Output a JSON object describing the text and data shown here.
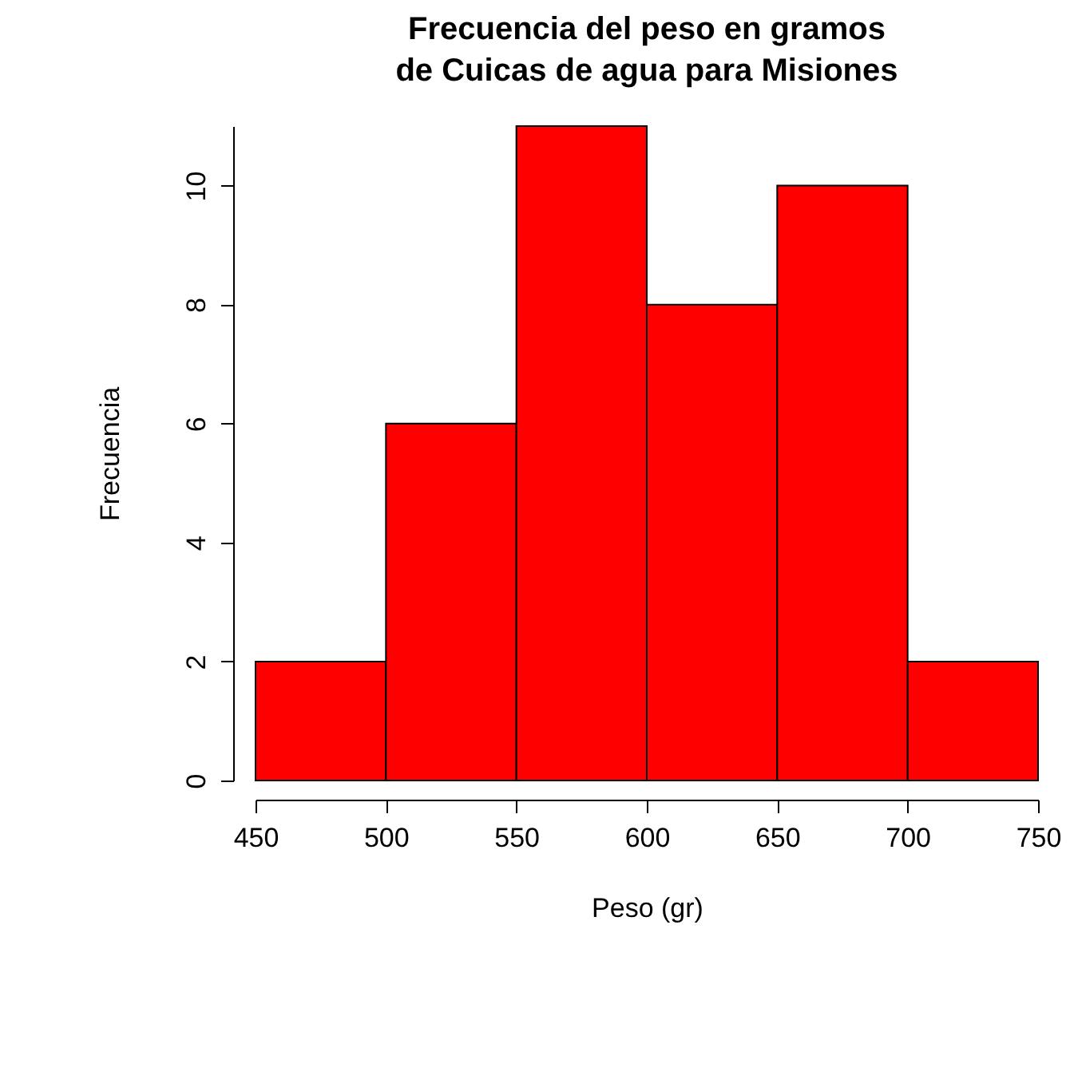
{
  "chart_data": {
    "type": "histogram",
    "title": "Frecuencia del peso en gramos\n de Cuicas de agua para Misiones",
    "xlabel": "Peso (gr)",
    "ylabel": "Frecuencia",
    "bins": [
      450,
      500,
      550,
      600,
      650,
      700,
      750
    ],
    "values": [
      2,
      6,
      11,
      8,
      10,
      2
    ],
    "color": "#ff0000",
    "xlim": [
      450,
      750
    ],
    "xticks": [
      450,
      500,
      550,
      600,
      650,
      700,
      750
    ],
    "ylim": [
      0,
      11
    ],
    "yticks": [
      0,
      2,
      4,
      6,
      8,
      10
    ],
    "grid": false
  }
}
